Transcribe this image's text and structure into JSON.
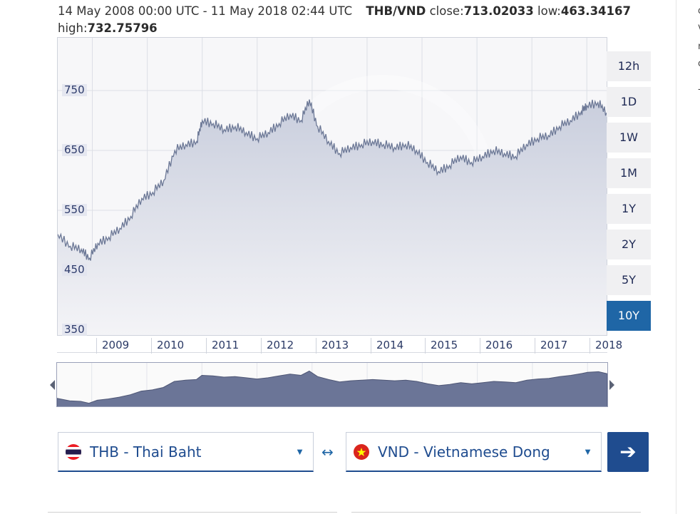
{
  "header": {
    "range": "14 May 2008 00:00 UTC - 11 May 2018 02:44 UTC",
    "pair": "THB/VND",
    "close_label": "close:",
    "close_value": "713.02033",
    "low_label": "low:",
    "low_value": "463.34167",
    "high_label": "high:",
    "high_value": "732.75796"
  },
  "right_column": [
    "d",
    "v",
    "r",
    "c",
    "-"
  ],
  "range_buttons": [
    "12h",
    "1D",
    "1W",
    "1M",
    "1Y",
    "2Y",
    "5Y",
    "10Y"
  ],
  "active_range": "10Y",
  "converter": {
    "from": {
      "label": "THB - Thai Baht",
      "flag": "thailand-flag-icon"
    },
    "to": {
      "label": "VND - Vietnamese Dong",
      "flag": "vietnam-flag-icon"
    },
    "swap_symbol": "↔",
    "go_symbol": "➔",
    "caret": "▼"
  },
  "colors": {
    "accent": "#1f66a6",
    "navy": "#1f4c8f",
    "series_line": "#6c7896",
    "navigator_fill": "#6b7597"
  },
  "chart_data": {
    "type": "area",
    "title": "",
    "xlabel": "",
    "ylabel": "",
    "ylim": [
      350,
      800
    ],
    "yticks": [
      750,
      650,
      550,
      450,
      350
    ],
    "xticks": [
      "2009",
      "2010",
      "2011",
      "2012",
      "2013",
      "2014",
      "2015",
      "2016",
      "2017",
      "2018"
    ],
    "x": [
      2008.37,
      2008.6,
      2008.8,
      2008.95,
      2009.1,
      2009.3,
      2009.5,
      2009.7,
      2009.9,
      2010.1,
      2010.3,
      2010.5,
      2010.7,
      2010.9,
      2011.0,
      2011.2,
      2011.4,
      2011.6,
      2011.8,
      2012.0,
      2012.2,
      2012.4,
      2012.6,
      2012.8,
      2012.95,
      2013.1,
      2013.3,
      2013.5,
      2013.7,
      2013.9,
      2014.1,
      2014.3,
      2014.5,
      2014.7,
      2014.9,
      2015.1,
      2015.3,
      2015.5,
      2015.7,
      2015.9,
      2016.1,
      2016.3,
      2016.5,
      2016.7,
      2016.9,
      2017.1,
      2017.3,
      2017.5,
      2017.7,
      2017.9,
      2018.0,
      2018.2,
      2018.36
    ],
    "values": [
      510,
      490,
      485,
      470,
      495,
      505,
      520,
      540,
      570,
      580,
      600,
      650,
      660,
      665,
      700,
      695,
      685,
      690,
      680,
      670,
      680,
      695,
      710,
      700,
      735,
      690,
      665,
      645,
      655,
      660,
      665,
      660,
      655,
      660,
      650,
      630,
      615,
      625,
      640,
      630,
      640,
      650,
      645,
      640,
      660,
      670,
      675,
      690,
      700,
      715,
      725,
      730,
      713
    ]
  }
}
